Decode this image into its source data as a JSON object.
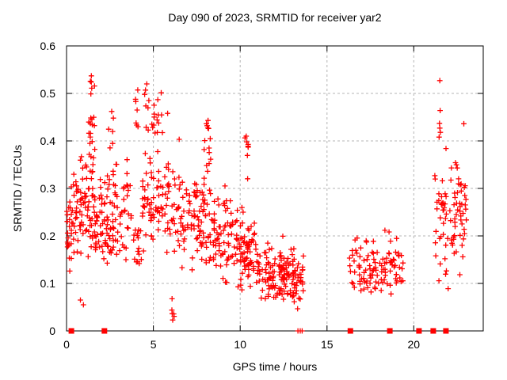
{
  "chart_data": {
    "type": "scatter",
    "title": "Day 090 of 2023, SRMTID for receiver yar2",
    "xlabel": "GPS time / hours",
    "ylabel": "SRMTID / TECUs",
    "xlim": [
      0,
      24
    ],
    "ylim": [
      0,
      0.6
    ],
    "xticks": [
      {
        "v": 0,
        "label": "0"
      },
      {
        "v": 5,
        "label": "5"
      },
      {
        "v": 10,
        "label": "10"
      },
      {
        "v": 15,
        "label": "15"
      },
      {
        "v": 20,
        "label": "20"
      }
    ],
    "yticks": [
      {
        "v": 0,
        "label": "0"
      },
      {
        "v": 0.1,
        "label": "0.1"
      },
      {
        "v": 0.2,
        "label": "0.2"
      },
      {
        "v": 0.3,
        "label": "0.3"
      },
      {
        "v": 0.4,
        "label": "0.4"
      },
      {
        "v": 0.5,
        "label": "0.5"
      },
      {
        "v": 0.6,
        "label": "0.6"
      }
    ],
    "grid": true,
    "legend": "none",
    "marker": "plus",
    "marker_color": "#ff0000",
    "grid_color": "#b4b4b4",
    "border_color": "#000000",
    "clusters": [
      {
        "x0": 0.02,
        "x1": 0.28,
        "n": 24,
        "yc": 0.21,
        "ysd": 0.05,
        "ymin": 0.12,
        "ymax": 0.315
      },
      {
        "x0": 0.3,
        "x1": 1.25,
        "n": 55,
        "yc": 0.26,
        "ysd": 0.06,
        "ymin": 0.13,
        "ymax": 0.45
      },
      {
        "x0": 1.25,
        "x1": 1.65,
        "n": 26,
        "yc": 0.4,
        "ysd": 0.07,
        "ymin": 0.26,
        "ymax": 0.545
      },
      {
        "x0": 1.2,
        "x1": 2.85,
        "n": 95,
        "yc": 0.225,
        "ysd": 0.04,
        "ymin": 0.13,
        "ymax": 0.33
      },
      {
        "x0": 2.4,
        "x1": 2.8,
        "n": 10,
        "yc": 0.37,
        "ysd": 0.05,
        "ymin": 0.3,
        "ymax": 0.465
      },
      {
        "x0": 2.85,
        "x1": 3.75,
        "n": 34,
        "yc": 0.25,
        "ysd": 0.06,
        "ymin": 0.14,
        "ymax": 0.46
      },
      {
        "x0": 3.8,
        "x1": 4.35,
        "n": 16,
        "yc": 0.2,
        "ysd": 0.05,
        "ymin": 0.12,
        "ymax": 0.33
      },
      {
        "x0": 3.95,
        "x1": 4.25,
        "n": 7,
        "yc": 0.46,
        "ysd": 0.04,
        "ymin": 0.4,
        "ymax": 0.525
      },
      {
        "x0": 4.35,
        "x1": 5.6,
        "n": 60,
        "yc": 0.27,
        "ysd": 0.05,
        "ymin": 0.16,
        "ymax": 0.4
      },
      {
        "x0": 4.45,
        "x1": 5.6,
        "n": 20,
        "yc": 0.45,
        "ysd": 0.035,
        "ymin": 0.4,
        "ymax": 0.525
      },
      {
        "x0": 5.6,
        "x1": 6.65,
        "n": 45,
        "yc": 0.26,
        "ysd": 0.06,
        "ymin": 0.14,
        "ymax": 0.46
      },
      {
        "x0": 6.05,
        "x1": 6.2,
        "n": 6,
        "yc": 0.05,
        "ysd": 0.025,
        "ymin": 0.015,
        "ymax": 0.085
      },
      {
        "x0": 6.65,
        "x1": 8.0,
        "n": 70,
        "yc": 0.23,
        "ysd": 0.05,
        "ymin": 0.12,
        "ymax": 0.37
      },
      {
        "x0": 7.9,
        "x1": 8.35,
        "n": 12,
        "yc": 0.39,
        "ysd": 0.035,
        "ymin": 0.33,
        "ymax": 0.445
      },
      {
        "x0": 8.0,
        "x1": 9.6,
        "n": 80,
        "yc": 0.21,
        "ysd": 0.05,
        "ymin": 0.1,
        "ymax": 0.335
      },
      {
        "x0": 9.6,
        "x1": 11.0,
        "n": 80,
        "yc": 0.17,
        "ysd": 0.04,
        "ymin": 0.085,
        "ymax": 0.28
      },
      {
        "x0": 10.25,
        "x1": 10.55,
        "n": 6,
        "yc": 0.36,
        "ysd": 0.04,
        "ymin": 0.3,
        "ymax": 0.415
      },
      {
        "x0": 11.0,
        "x1": 12.5,
        "n": 72,
        "yc": 0.12,
        "ysd": 0.03,
        "ymin": 0.065,
        "ymax": 0.21
      },
      {
        "x0": 12.2,
        "x1": 13.65,
        "n": 85,
        "yc": 0.11,
        "ysd": 0.028,
        "ymin": 0.045,
        "ymax": 0.175
      },
      {
        "x0": 16.3,
        "x1": 19.4,
        "n": 110,
        "yc": 0.135,
        "ysd": 0.033,
        "ymin": 0.075,
        "ymax": 0.245
      },
      {
        "x0": 21.2,
        "x1": 23.05,
        "n": 92,
        "yc": 0.25,
        "ysd": 0.065,
        "ymin": 0.075,
        "ymax": 0.44
      }
    ],
    "outlier_points": [
      [
        0.8,
        0.065
      ],
      [
        0.97,
        0.055
      ],
      [
        1.43,
        0.537
      ],
      [
        1.43,
        0.524
      ],
      [
        1.45,
        0.511
      ],
      [
        1.4,
        0.499
      ],
      [
        2.6,
        0.462
      ],
      [
        4.62,
        0.52
      ],
      [
        4.55,
        0.507
      ],
      [
        4.5,
        0.498
      ],
      [
        5.82,
        0.458
      ],
      [
        8.15,
        0.443
      ],
      [
        8.1,
        0.432
      ],
      [
        10.35,
        0.41
      ],
      [
        10.38,
        0.398
      ],
      [
        21.5,
        0.527
      ],
      [
        21.52,
        0.464
      ],
      [
        21.48,
        0.437
      ],
      [
        21.5,
        0.427
      ],
      [
        21.53,
        0.418
      ],
      [
        21.46,
        0.408
      ]
    ],
    "zero_plus_markers_x": [
      13.33,
      13.46,
      13.57
    ],
    "zero_square_markers_x": [
      0.28,
      2.18,
      16.35,
      18.62,
      20.3,
      21.12,
      21.85
    ]
  }
}
